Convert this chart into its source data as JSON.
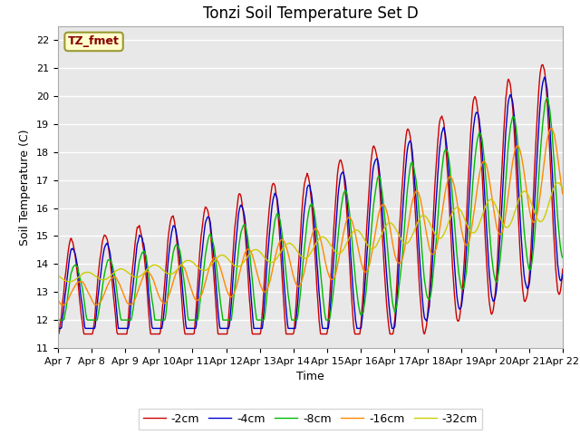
{
  "title": "Tonzi Soil Temperature Set D",
  "xlabel": "Time",
  "ylabel": "Soil Temperature (C)",
  "ylim": [
    11.0,
    22.5
  ],
  "yticks": [
    11.0,
    12.0,
    13.0,
    14.0,
    15.0,
    16.0,
    17.0,
    18.0,
    19.0,
    20.0,
    21.0,
    22.0
  ],
  "legend_label": "TZ_fmet",
  "series_labels": [
    "-2cm",
    "-4cm",
    "-8cm",
    "-16cm",
    "-32cm"
  ],
  "series_colors": [
    "#cc0000",
    "#0000cc",
    "#00bb00",
    "#ff8800",
    "#cccc00"
  ],
  "background_color": "#ffffff",
  "plot_bg_color": "#e8e8e8",
  "n_points": 720,
  "title_fontsize": 12,
  "axis_label_fontsize": 9,
  "tick_fontsize": 8,
  "legend_box_facecolor": "#ffffcc",
  "legend_box_edgecolor": "#999933",
  "legend_text_color": "#880000",
  "grid_color": "#ffffff",
  "grid_linewidth": 1.0
}
